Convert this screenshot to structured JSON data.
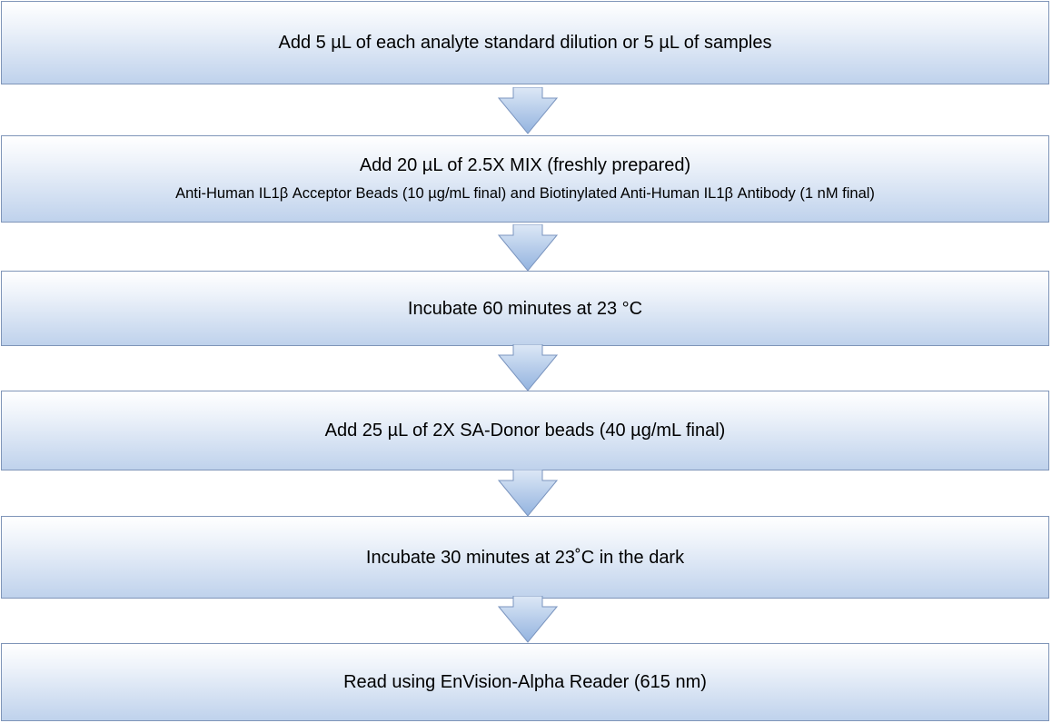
{
  "steps": [
    {
      "title": "Add 5 µL of each analyte standard dilution or 5 µL of samples"
    },
    {
      "title": "Add 20 µL of 2.5X MIX (freshly prepared)",
      "detail": "Anti-Human IL1β Acceptor Beads (10 µg/mL final) and Biotinylated Anti-Human IL1β Antibody (1 nM final)"
    },
    {
      "title": "Incubate 60 minutes at 23 °C"
    },
    {
      "title": "Add 25 µL of 2X SA-Donor beads (40 µg/mL final)"
    },
    {
      "title": "Incubate 30 minutes at 23˚C in the dark"
    },
    {
      "title": "Read using EnVision-Alpha Reader (615 nm)"
    }
  ],
  "colors": {
    "box_border": "#7f95b8",
    "box_fill_top": "#ffffff",
    "box_fill_bottom": "#bfd2ec",
    "arrow_fill_top": "#dde8f6",
    "arrow_fill_bottom": "#93b3df",
    "arrow_stroke": "#7b95bf"
  },
  "icons": {
    "connector": "down-arrow-icon"
  }
}
